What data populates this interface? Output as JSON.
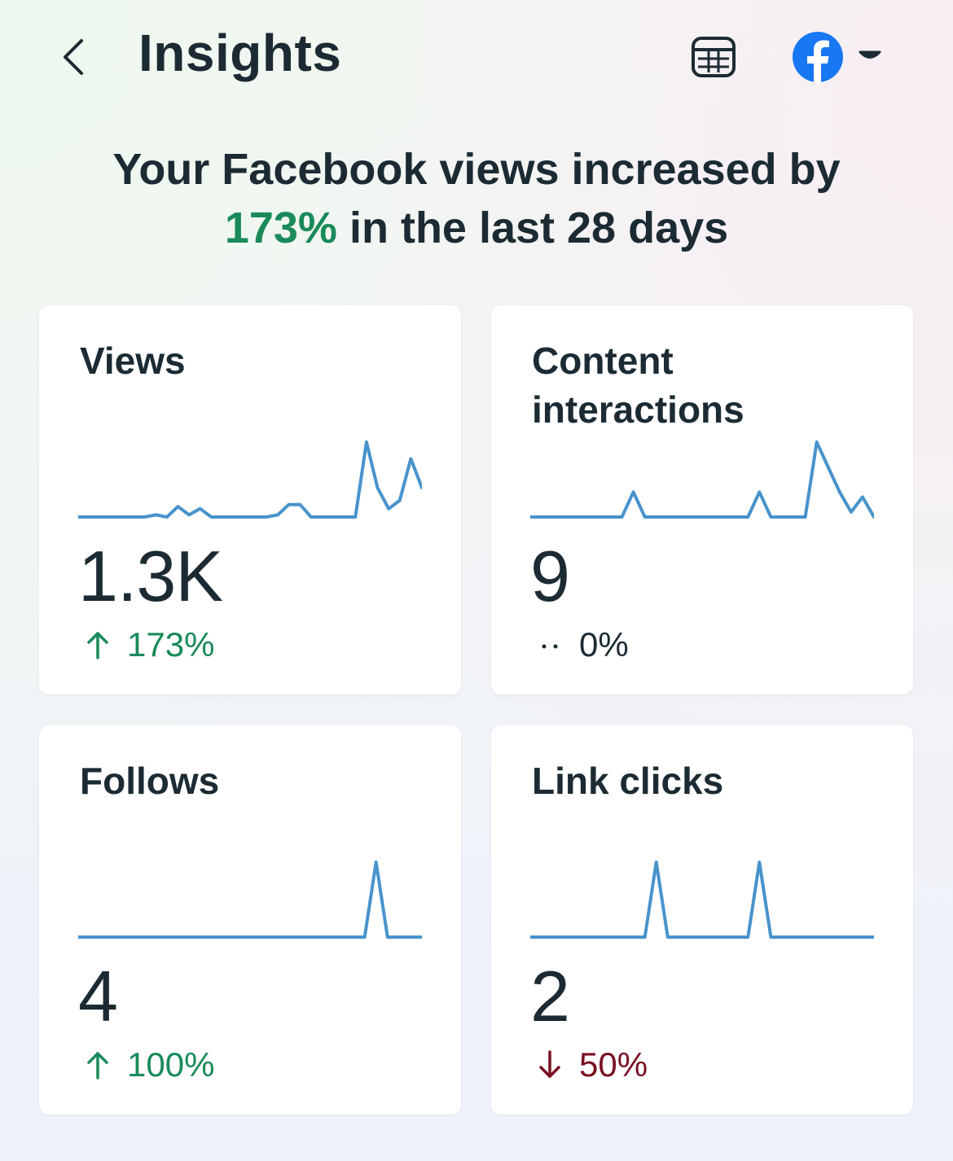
{
  "header": {
    "title": "Insights",
    "back_icon": "chevron-left-icon",
    "table_icon": "table-icon",
    "account_icon": "facebook-icon",
    "caret_icon": "caret-down-icon"
  },
  "summary": {
    "prefix": "Your Facebook views increased by",
    "highlight": "173%",
    "suffix": "in the last 28 days"
  },
  "colors": {
    "positive": "#1a8a5a",
    "negative": "#7a1022",
    "sparkline": "#4893cc",
    "facebook_blue": "#1877f2"
  },
  "cards": [
    {
      "title": "Views",
      "value": "1.3K",
      "change": "173%",
      "direction": "up",
      "change_icon": "arrow-up-icon",
      "series": [
        0,
        0,
        0,
        0,
        0,
        0,
        0,
        0.5,
        0,
        2.5,
        0.5,
        2,
        0,
        0,
        0,
        0,
        0,
        0,
        0.5,
        3,
        3,
        0,
        0,
        0,
        0,
        0,
        18,
        7,
        2,
        4,
        14,
        7
      ]
    },
    {
      "title": "Content interactions",
      "value": "9",
      "change": "0%",
      "direction": "flat",
      "change_icon": "dots-icon",
      "series": [
        0,
        0,
        0,
        0,
        0,
        0,
        0,
        0,
        0,
        1,
        0,
        0,
        0,
        0,
        0,
        0,
        0,
        0,
        0,
        0,
        1,
        0,
        0,
        0,
        0,
        3,
        2,
        1,
        0.2,
        0.8,
        0
      ]
    },
    {
      "title": "Follows",
      "value": "4",
      "change": "100%",
      "direction": "up",
      "change_icon": "arrow-up-icon",
      "series": [
        0,
        0,
        0,
        0,
        0,
        0,
        0,
        0,
        0,
        0,
        0,
        0,
        0,
        0,
        0,
        0,
        0,
        0,
        0,
        0,
        0,
        0,
        0,
        0,
        0,
        0,
        1,
        0,
        0,
        0,
        0
      ]
    },
    {
      "title": "Link clicks",
      "value": "2",
      "change": "50%",
      "direction": "down",
      "change_icon": "arrow-down-icon",
      "series": [
        0,
        0,
        0,
        0,
        0,
        0,
        0,
        0,
        0,
        0,
        0,
        1,
        0,
        0,
        0,
        0,
        0,
        0,
        0,
        0,
        1,
        0,
        0,
        0,
        0,
        0,
        0,
        0,
        0,
        0,
        0
      ]
    }
  ]
}
